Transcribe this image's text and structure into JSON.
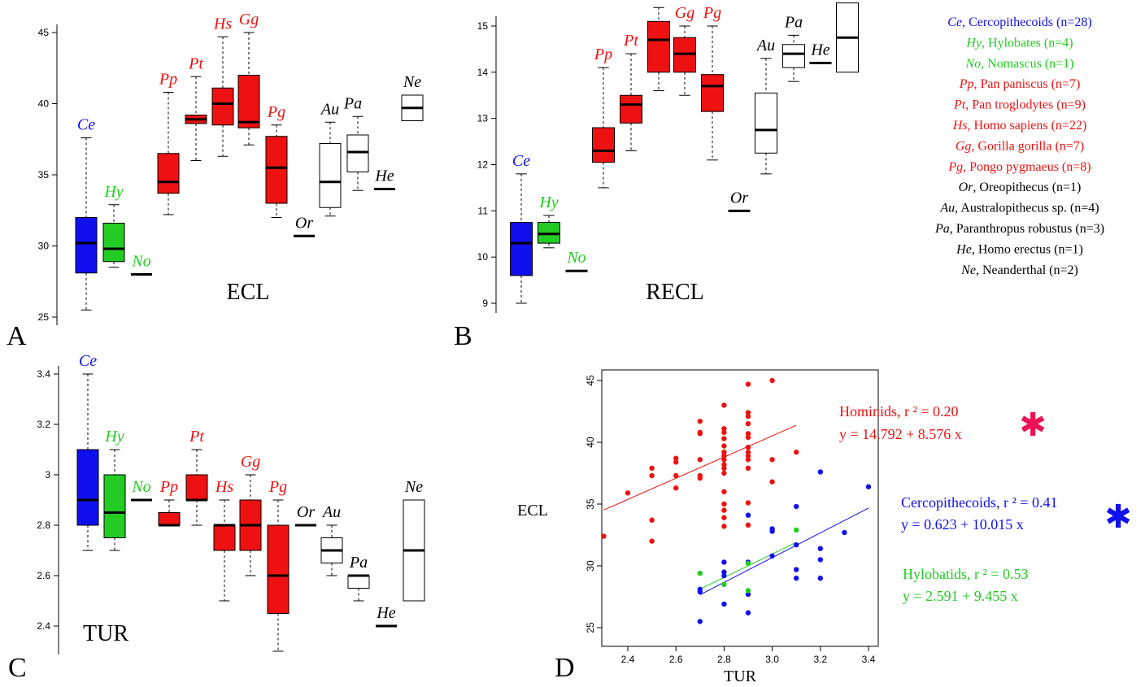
{
  "colors": {
    "blue": "#1010ee",
    "green": "#22cc22",
    "red": "#ee1111",
    "black": "#000000",
    "pink": "#ee1155"
  },
  "legend": [
    {
      "abbr": "Ce",
      "text": ", Cercopithecoids (n=28)",
      "color": "blue"
    },
    {
      "abbr": "Hy",
      "text": ", Hylobates (n=4)",
      "color": "green"
    },
    {
      "abbr": "No",
      "text": ", Nomascus (n=1)",
      "color": "green"
    },
    {
      "abbr": "Pp",
      "text": ", Pan paniscus (n=7)",
      "color": "red"
    },
    {
      "abbr": "Pt",
      "text": ", Pan troglodytes (n=9)",
      "color": "red"
    },
    {
      "abbr": "Hs",
      "text": ", Homo sapiens (n=22)",
      "color": "red"
    },
    {
      "abbr": "Gg",
      "text": ", Gorilla gorilla (n=7)",
      "color": "red"
    },
    {
      "abbr": "Pg",
      "text": ", Pongo pygmaeus (n=8)",
      "color": "red"
    },
    {
      "abbr": "Or",
      "text": ", Oreopithecus (n=1)",
      "color": "black"
    },
    {
      "abbr": "Au",
      "text": ", Australopithecus sp. (n=4)",
      "color": "black"
    },
    {
      "abbr": "Pa",
      "text": ",  Paranthropus robustus (n=3)",
      "color": "black"
    },
    {
      "abbr": "He",
      "text": ", Homo erectus (n=1)",
      "color": "black"
    },
    {
      "abbr": "Ne",
      "text": ", Neanderthal (n=2)",
      "color": "black"
    }
  ],
  "chart_data": [
    {
      "panel": "A",
      "type": "boxplot",
      "title": "ECL",
      "ylim": [
        25,
        45
      ],
      "yticks": [
        25,
        30,
        35,
        40,
        45
      ],
      "groups": [
        {
          "label": "Ce",
          "color": "blue",
          "min": 25.5,
          "q1": 28.1,
          "median": 30.2,
          "q3": 32.0,
          "max": 37.6
        },
        {
          "label": "Hy",
          "color": "green",
          "min": 28.5,
          "q1": 28.9,
          "median": 29.8,
          "q3": 31.6,
          "max": 32.9
        },
        {
          "label": "No",
          "color": "green",
          "median": 28.0
        },
        {
          "label": "Pp",
          "color": "red",
          "min": 32.2,
          "q1": 33.7,
          "median": 34.5,
          "q3": 36.5,
          "max": 40.8
        },
        {
          "label": "Pt",
          "color": "red",
          "min": 36.0,
          "q1": 38.6,
          "median": 38.9,
          "q3": 39.2,
          "max": 41.9
        },
        {
          "label": "Hs",
          "color": "red",
          "min": 36.3,
          "q1": 38.5,
          "median": 40.0,
          "q3": 41.1,
          "max": 44.7
        },
        {
          "label": "Gg",
          "color": "red",
          "min": 37.1,
          "q1": 38.3,
          "median": 38.7,
          "q3": 42.0,
          "max": 45.0
        },
        {
          "label": "Pg",
          "color": "red",
          "min": 32.0,
          "q1": 33.0,
          "median": 35.5,
          "q3": 37.7,
          "max": 38.5
        },
        {
          "label": "Or",
          "color": "black",
          "median": 30.7
        },
        {
          "label": "Au",
          "color": "white",
          "min": 32.1,
          "q1": 32.7,
          "median": 34.5,
          "q3": 37.2,
          "max": 38.7
        },
        {
          "label": "Pa",
          "color": "white",
          "min": 33.9,
          "q1": 35.2,
          "median": 36.6,
          "q3": 37.8,
          "max": 39.1
        },
        {
          "label": "He",
          "color": "black",
          "median": 34.0
        },
        {
          "label": "Ne",
          "color": "white",
          "min": 38.8,
          "q1": 38.8,
          "median": 39.7,
          "q3": 40.6,
          "max": 40.6
        }
      ]
    },
    {
      "panel": "B",
      "type": "boxplot",
      "title": "RECL",
      "ylim": [
        9,
        15.5
      ],
      "yticks": [
        9,
        10,
        11,
        12,
        13,
        14,
        15
      ],
      "groups": [
        {
          "label": "Ce",
          "color": "blue",
          "min": 9.0,
          "q1": 9.6,
          "median": 10.3,
          "q3": 10.75,
          "max": 11.8
        },
        {
          "label": "Hy",
          "color": "green",
          "min": 10.2,
          "q1": 10.3,
          "median": 10.5,
          "q3": 10.75,
          "max": 10.9
        },
        {
          "label": "No",
          "color": "green",
          "median": 9.7
        },
        {
          "label": "Pp",
          "color": "red",
          "min": 11.5,
          "q1": 12.05,
          "median": 12.3,
          "q3": 12.8,
          "max": 14.1
        },
        {
          "label": "Pt",
          "color": "red",
          "min": 12.3,
          "q1": 12.9,
          "median": 13.3,
          "q3": 13.5,
          "max": 14.4
        },
        {
          "label": "Hs",
          "color": "red",
          "min": 13.6,
          "q1": 14.0,
          "median": 14.7,
          "q3": 15.1,
          "max": 15.4
        },
        {
          "label": "Gg",
          "color": "red",
          "min": 13.5,
          "q1": 14.0,
          "median": 14.4,
          "q3": 14.75,
          "max": 15.0
        },
        {
          "label": "Pg",
          "color": "red",
          "min": 12.1,
          "q1": 13.15,
          "median": 13.7,
          "q3": 13.95,
          "max": 15.0
        },
        {
          "label": "Or",
          "color": "black",
          "median": 11.0
        },
        {
          "label": "Au",
          "color": "white",
          "min": 11.8,
          "q1": 12.25,
          "median": 12.75,
          "q3": 13.55,
          "max": 14.3
        },
        {
          "label": "Pa",
          "color": "white",
          "min": 13.8,
          "q1": 14.1,
          "median": 14.4,
          "q3": 14.6,
          "max": 14.8
        },
        {
          "label": "He",
          "color": "black",
          "median": 14.2
        },
        {
          "label": "Ne",
          "color": "white",
          "min": 14.0,
          "q1": 14.0,
          "median": 14.75,
          "q3": 15.5,
          "max": 15.5
        }
      ]
    },
    {
      "panel": "C",
      "type": "boxplot",
      "title": "TUR",
      "ylim": [
        2.3,
        3.4
      ],
      "yticks": [
        2.4,
        2.6,
        2.8,
        3.0,
        3.2,
        3.4
      ],
      "groups": [
        {
          "label": "Ce",
          "color": "blue",
          "min": 2.7,
          "q1": 2.8,
          "median": 2.9,
          "q3": 3.1,
          "max": 3.4
        },
        {
          "label": "Hy",
          "color": "green",
          "min": 2.7,
          "q1": 2.75,
          "median": 2.85,
          "q3": 3.0,
          "max": 3.1
        },
        {
          "label": "No",
          "color": "green",
          "median": 2.9
        },
        {
          "label": "Pp",
          "color": "red",
          "min": 2.8,
          "q1": 2.8,
          "median": 2.8,
          "q3": 2.85,
          "max": 2.9
        },
        {
          "label": "Pt",
          "color": "red",
          "min": 2.8,
          "q1": 2.9,
          "median": 2.9,
          "q3": 3.0,
          "max": 3.1
        },
        {
          "label": "Hs",
          "color": "red",
          "min": 2.5,
          "q1": 2.7,
          "median": 2.8,
          "q3": 2.8,
          "max": 2.9
        },
        {
          "label": "Gg",
          "color": "red",
          "min": 2.6,
          "q1": 2.7,
          "median": 2.8,
          "q3": 2.9,
          "max": 3.0
        },
        {
          "label": "Pg",
          "color": "red",
          "min": 2.3,
          "q1": 2.45,
          "median": 2.6,
          "q3": 2.8,
          "max": 2.9
        },
        {
          "label": "Or",
          "color": "black",
          "median": 2.8
        },
        {
          "label": "Au",
          "color": "white",
          "min": 2.6,
          "q1": 2.65,
          "median": 2.7,
          "q3": 2.75,
          "max": 2.8
        },
        {
          "label": "Pa",
          "color": "white",
          "min": 2.5,
          "q1": 2.55,
          "median": 2.6,
          "q3": 2.6,
          "max": 2.6
        },
        {
          "label": "He",
          "color": "black",
          "median": 2.4
        },
        {
          "label": "Ne",
          "color": "white",
          "min": 2.5,
          "q1": 2.5,
          "median": 2.7,
          "q3": 2.9,
          "max": 2.9
        }
      ]
    },
    {
      "panel": "D",
      "type": "scatter",
      "xlabel": "TUR",
      "ylabel": "ECL",
      "xlim": [
        2.3,
        3.4
      ],
      "ylim": [
        25,
        45
      ],
      "xticks": [
        2.4,
        2.6,
        2.8,
        3.0,
        3.2,
        3.4
      ],
      "xtick_labels": [
        "2.4",
        "2.6",
        "2.8",
        "3.0",
        "3.2",
        "3.4"
      ],
      "yticks": [
        25,
        30,
        35,
        40,
        45
      ],
      "series": [
        {
          "name": "Hominids",
          "color": "red",
          "r2_text": "Hominids, r ² = 0.20",
          "equation": "y = 14.792 + 8.576 x",
          "significant": true,
          "star_color": "pink",
          "star": "✱",
          "fit": {
            "intercept": 14.792,
            "slope": 8.576,
            "x_range": [
              2.3,
              3.1
            ]
          },
          "points": [
            [
              2.3,
              32.4
            ],
            [
              2.4,
              35.9
            ],
            [
              2.5,
              37.9
            ],
            [
              2.5,
              37.3
            ],
            [
              2.5,
              33.7
            ],
            [
              2.5,
              32.0
            ],
            [
              2.6,
              38.7
            ],
            [
              2.6,
              38.4
            ],
            [
              2.6,
              37.3
            ],
            [
              2.6,
              36.3
            ],
            [
              2.7,
              41.7
            ],
            [
              2.7,
              40.8
            ],
            [
              2.7,
              40.7
            ],
            [
              2.7,
              38.6
            ],
            [
              2.7,
              37.3
            ],
            [
              2.7,
              37.1
            ],
            [
              2.8,
              43.0
            ],
            [
              2.8,
              41.1
            ],
            [
              2.8,
              40.8
            ],
            [
              2.8,
              40.3
            ],
            [
              2.8,
              39.7
            ],
            [
              2.8,
              39.2
            ],
            [
              2.8,
              38.9
            ],
            [
              2.8,
              38.6
            ],
            [
              2.8,
              38.2
            ],
            [
              2.8,
              37.9
            ],
            [
              2.8,
              37.5
            ],
            [
              2.8,
              36.0
            ],
            [
              2.8,
              35.0
            ],
            [
              2.8,
              34.5
            ],
            [
              2.8,
              33.9
            ],
            [
              2.8,
              33.2
            ],
            [
              2.9,
              44.7
            ],
            [
              2.9,
              42.4
            ],
            [
              2.9,
              42.1
            ],
            [
              2.9,
              41.5
            ],
            [
              2.9,
              40.7
            ],
            [
              2.9,
              40.4
            ],
            [
              2.9,
              39.6
            ],
            [
              2.9,
              39.2
            ],
            [
              2.9,
              38.9
            ],
            [
              2.9,
              38.6
            ],
            [
              2.9,
              37.9
            ],
            [
              2.9,
              35.1
            ],
            [
              2.9,
              33.3
            ],
            [
              3.0,
              45.0
            ],
            [
              3.0,
              38.6
            ],
            [
              3.0,
              36.8
            ],
            [
              3.1,
              39.2
            ]
          ]
        },
        {
          "name": "Cercopithecoids",
          "color": "blue",
          "r2_text": "Cercopithecoids, r ² = 0.41",
          "equation": "y = 0.623 + 10.015 x",
          "significant": true,
          "star_color": "blue",
          "star": "✱",
          "fit": {
            "intercept": 0.623,
            "slope": 10.015,
            "x_range": [
              2.7,
              3.4
            ]
          },
          "points": [
            [
              2.7,
              28.1
            ],
            [
              2.7,
              27.9
            ],
            [
              2.7,
              25.5
            ],
            [
              2.8,
              30.3
            ],
            [
              2.8,
              29.5
            ],
            [
              2.8,
              29.2
            ],
            [
              2.8,
              26.9
            ],
            [
              2.9,
              34.1
            ],
            [
              2.9,
              30.3
            ],
            [
              2.9,
              27.7
            ],
            [
              2.9,
              26.2
            ],
            [
              3.0,
              33.0
            ],
            [
              3.0,
              32.8
            ],
            [
              3.0,
              30.8
            ],
            [
              3.1,
              34.8
            ],
            [
              3.1,
              31.7
            ],
            [
              3.1,
              29.7
            ],
            [
              3.1,
              29.0
            ],
            [
              3.2,
              37.6
            ],
            [
              3.2,
              31.4
            ],
            [
              3.2,
              30.5
            ],
            [
              3.2,
              29.0
            ],
            [
              3.3,
              32.7
            ],
            [
              3.4,
              36.4
            ]
          ]
        },
        {
          "name": "Hylobatids",
          "color": "green",
          "r2_text": "Hylobatids, r ² = 0.53",
          "equation": "y = 2.591 + 9.455 x",
          "significant": false,
          "fit": {
            "intercept": 2.591,
            "slope": 9.455,
            "x_range": [
              2.7,
              3.1
            ]
          },
          "points": [
            [
              2.7,
              29.4
            ],
            [
              2.8,
              28.5
            ],
            [
              2.9,
              30.2
            ],
            [
              2.9,
              28.0
            ],
            [
              3.1,
              32.9
            ]
          ]
        }
      ]
    }
  ]
}
